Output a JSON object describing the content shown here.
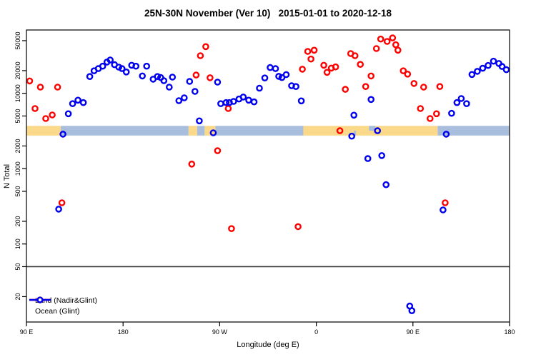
{
  "chart_data": {
    "type": "scatter",
    "title": "25N-30N November (Ver 10)   2015-01-01 to 2020-12-18",
    "xlabel": "Longitude (deg E)",
    "ylabel": "N Total",
    "y_scale": "log",
    "y_ticks": [
      20,
      50,
      100,
      200,
      500,
      1000,
      2000,
      5000,
      10000,
      20000,
      50000
    ],
    "y_range": [
      9,
      69000
    ],
    "x_axis_note": "axis wraps 450 degrees: 90E to 180 to 90W to 0 to 90E to 180",
    "x_ticks": [
      {
        "pos": 90,
        "label": "90 E"
      },
      {
        "pos": 180,
        "label": "180"
      },
      {
        "pos": 270,
        "label": "90 W"
      },
      {
        "pos": 360,
        "label": "0"
      },
      {
        "pos": 450,
        "label": "90 E"
      },
      {
        "pos": 540,
        "label": "180"
      }
    ],
    "reference_line": {
      "y_value": 50,
      "color": "#3a3a3a"
    },
    "land_ocean_band": {
      "n_range": [
        2750,
        3700
      ],
      "land_color": "#fbd98b",
      "ocean_color": "#a9bedd",
      "segments": [
        {
          "from": 90,
          "to": 122,
          "surface": "land"
        },
        {
          "from": 122,
          "to": 241,
          "surface": "ocean"
        },
        {
          "from": 241,
          "to": 249,
          "surface": "land"
        },
        {
          "from": 249,
          "to": 256,
          "surface": "ocean"
        },
        {
          "from": 256,
          "to": 266,
          "surface": "land"
        },
        {
          "from": 266,
          "to": 348,
          "surface": "ocean"
        },
        {
          "from": 348,
          "to": 473,
          "surface": "land"
        },
        {
          "from": 473,
          "to": 540,
          "surface": "ocean"
        }
      ],
      "notches": [
        {
          "from": 395,
          "to": 397,
          "part": "bottom",
          "surface": "ocean"
        },
        {
          "from": 409,
          "to": 415,
          "part": "top",
          "surface": "ocean"
        }
      ]
    },
    "series": [
      {
        "name": "Land (Nadir&Glint)",
        "color": "#ff0000",
        "points": [
          [
            93,
            14600
          ],
          [
            98,
            6280
          ],
          [
            103,
            12100
          ],
          [
            108,
            4630
          ],
          [
            114,
            5160
          ],
          [
            119,
            12100
          ],
          [
            123,
            352
          ],
          [
            244,
            1150
          ],
          [
            248,
            17500
          ],
          [
            252,
            31600
          ],
          [
            257,
            41700
          ],
          [
            261,
            16100
          ],
          [
            268,
            1730
          ],
          [
            278,
            6280
          ],
          [
            281,
            160
          ],
          [
            343,
            170
          ],
          [
            347,
            20900
          ],
          [
            352,
            36000
          ],
          [
            355,
            28500
          ],
          [
            358,
            37400
          ],
          [
            367,
            23600
          ],
          [
            370,
            19000
          ],
          [
            374,
            21600
          ],
          [
            378,
            22400
          ],
          [
            382,
            3190
          ],
          [
            387,
            11300
          ],
          [
            392,
            33700
          ],
          [
            396,
            31600
          ],
          [
            401,
            24200
          ],
          [
            406,
            12300
          ],
          [
            411,
            17000
          ],
          [
            416,
            39300
          ],
          [
            420,
            52500
          ],
          [
            426,
            48900
          ],
          [
            431,
            54400
          ],
          [
            434,
            44100
          ],
          [
            436,
            37400
          ],
          [
            441,
            19900
          ],
          [
            445,
            18000
          ],
          [
            451,
            13500
          ],
          [
            457,
            6280
          ],
          [
            460,
            12100
          ],
          [
            466,
            4630
          ],
          [
            472,
            5360
          ],
          [
            475,
            12300
          ],
          [
            480,
            352
          ]
        ]
      },
      {
        "name": "Ocean (Glint)",
        "color": "#0000ee",
        "points": [
          [
            120,
            290
          ],
          [
            124,
            2870
          ],
          [
            129,
            5360
          ],
          [
            133,
            7280
          ],
          [
            138,
            8110
          ],
          [
            143,
            7530
          ],
          [
            149,
            16700
          ],
          [
            153,
            19900
          ],
          [
            157,
            21300
          ],
          [
            161,
            22900
          ],
          [
            165,
            26000
          ],
          [
            168,
            27700
          ],
          [
            172,
            24000
          ],
          [
            176,
            22300
          ],
          [
            179,
            21300
          ],
          [
            183,
            19200
          ],
          [
            188,
            23600
          ],
          [
            192,
            22900
          ],
          [
            198,
            17000
          ],
          [
            202,
            22900
          ],
          [
            208,
            15400
          ],
          [
            212,
            16700
          ],
          [
            215,
            16200
          ],
          [
            218,
            14700
          ],
          [
            223,
            12100
          ],
          [
            226,
            16400
          ],
          [
            232,
            7980
          ],
          [
            237,
            8710
          ],
          [
            242,
            14400
          ],
          [
            247,
            10600
          ],
          [
            251,
            4310
          ],
          [
            264,
            2990
          ],
          [
            268,
            14100
          ],
          [
            271,
            7280
          ],
          [
            276,
            7530
          ],
          [
            279,
            7530
          ],
          [
            283,
            7820
          ],
          [
            288,
            8400
          ],
          [
            292,
            8920
          ],
          [
            297,
            8110
          ],
          [
            302,
            7690
          ],
          [
            307,
            11700
          ],
          [
            312,
            16000
          ],
          [
            317,
            22000
          ],
          [
            322,
            21300
          ],
          [
            325,
            16800
          ],
          [
            328,
            16200
          ],
          [
            332,
            17700
          ],
          [
            337,
            12600
          ],
          [
            341,
            12300
          ],
          [
            346,
            7940
          ],
          [
            393,
            2700
          ],
          [
            395,
            5130
          ],
          [
            408,
            1360
          ],
          [
            411,
            8280
          ],
          [
            417,
            3190
          ],
          [
            421,
            1490
          ],
          [
            425,
            612
          ],
          [
            447,
            15
          ],
          [
            449,
            13
          ],
          [
            478,
            283
          ],
          [
            481,
            2870
          ],
          [
            486,
            5430
          ],
          [
            491,
            7530
          ],
          [
            495,
            8530
          ],
          [
            500,
            7280
          ],
          [
            505,
            17800
          ],
          [
            510,
            19600
          ],
          [
            515,
            21500
          ],
          [
            520,
            23400
          ],
          [
            525,
            26700
          ],
          [
            530,
            24900
          ],
          [
            533,
            22700
          ],
          [
            537,
            20600
          ]
        ]
      }
    ],
    "legend_position": "bottom-left"
  }
}
